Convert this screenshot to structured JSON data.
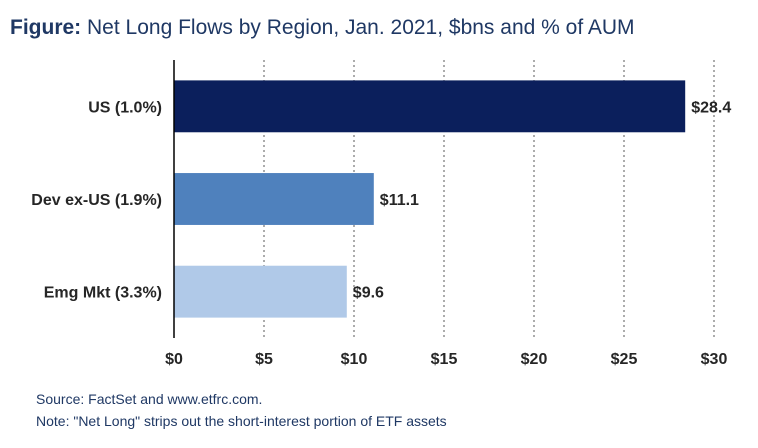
{
  "title": {
    "lead": "Figure:",
    "text": "Net Long Flows by Region, Jan. 2021, $bns and % of AUM"
  },
  "source": "Source: FactSet and www.etfrc.com.",
  "note": "Note: \"Net Long\" strips out the short-interest portion of ETF assets",
  "chart_data": {
    "type": "bar",
    "orientation": "horizontal",
    "categories": [
      "US (1.0%)",
      "Dev ex-US (1.9%)",
      "Emg Mkt (3.3%)"
    ],
    "values": [
      28.4,
      11.1,
      9.6
    ],
    "data_labels": [
      "$28.4",
      "$11.1",
      "$9.6"
    ],
    "colors": [
      "#0b1f5c",
      "#4f81bd",
      "#b0c9e8"
    ],
    "xlim": [
      0,
      30
    ],
    "xticks": [
      0,
      5,
      10,
      15,
      20,
      25,
      30
    ],
    "xtick_labels": [
      "$0",
      "$5",
      "$10",
      "$15",
      "$20",
      "$25",
      "$30"
    ],
    "grid": "vertical dotted",
    "legend": "none"
  }
}
